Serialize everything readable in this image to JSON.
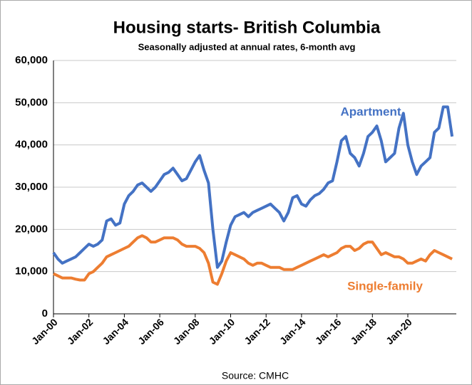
{
  "chart_data": {
    "type": "line",
    "title": "Housing starts- British Columbia",
    "subtitle": "Seasonally adjusted at annual rates, 6-month avg",
    "source": "Source: CMHC",
    "categories": [
      "Jan-00",
      null,
      null,
      null,
      null,
      null,
      null,
      null,
      "Jan-02",
      null,
      null,
      null,
      null,
      null,
      null,
      null,
      "Jan-04",
      null,
      null,
      null,
      null,
      null,
      null,
      null,
      "Jan-06",
      null,
      null,
      null,
      null,
      null,
      null,
      null,
      "Jan-08",
      null,
      null,
      null,
      null,
      null,
      null,
      null,
      "Jan-10",
      null,
      null,
      null,
      null,
      null,
      null,
      null,
      "Jan-12",
      null,
      null,
      null,
      null,
      null,
      null,
      null,
      "Jan-14",
      null,
      null,
      null,
      null,
      null,
      null,
      null,
      "Jan-16",
      null,
      null,
      null,
      null,
      null,
      null,
      null,
      "Jan-18",
      null,
      null,
      null,
      null,
      null,
      null,
      null,
      "Jan-20",
      null,
      null,
      null,
      null,
      null,
      null,
      null,
      null,
      null,
      null
    ],
    "series": [
      {
        "name": "Apartment",
        "color": "#4472c4",
        "values": [
          14500,
          13000,
          12000,
          12500,
          13000,
          13500,
          14500,
          15500,
          16500,
          16000,
          16500,
          17500,
          22000,
          22500,
          21000,
          21500,
          26000,
          28000,
          29000,
          30500,
          31000,
          30000,
          29000,
          30000,
          31500,
          33000,
          33500,
          34500,
          33000,
          31500,
          32000,
          34000,
          36000,
          37500,
          34000,
          31000,
          20000,
          11000,
          12500,
          17000,
          21000,
          23000,
          23500,
          24000,
          23000,
          24000,
          24500,
          25000,
          25500,
          26000,
          25000,
          24000,
          22000,
          24000,
          27500,
          28000,
          26000,
          25500,
          27000,
          28000,
          28500,
          29500,
          31000,
          31500,
          36000,
          41000,
          42000,
          38000,
          37000,
          35000,
          38000,
          42000,
          43000,
          44500,
          41000,
          36000,
          37000,
          38000,
          44000,
          47500,
          40000,
          36000,
          33000,
          35000,
          36000,
          37000,
          43000,
          44000,
          49000,
          49000,
          42000
        ]
      },
      {
        "name": "Single-family",
        "color": "#ed7d31",
        "values": [
          9500,
          9000,
          8500,
          8500,
          8500,
          8200,
          8000,
          8000,
          9500,
          10000,
          11000,
          12000,
          13500,
          14000,
          14500,
          15000,
          15500,
          16000,
          17000,
          18000,
          18500,
          18000,
          17000,
          17000,
          17500,
          18000,
          18000,
          18000,
          17500,
          16500,
          16000,
          16000,
          16000,
          15500,
          14500,
          12000,
          7500,
          7000,
          9500,
          12500,
          14500,
          14000,
          13500,
          13000,
          12000,
          11500,
          12000,
          12000,
          11500,
          11000,
          11000,
          11000,
          10500,
          10500,
          10500,
          11000,
          11500,
          12000,
          12500,
          13000,
          13500,
          14000,
          13500,
          14000,
          14500,
          15500,
          16000,
          16000,
          15000,
          15500,
          16500,
          17000,
          17000,
          15500,
          14000,
          14500,
          14000,
          13500,
          13500,
          13000,
          12000,
          12000,
          12500,
          13000,
          12500,
          14000,
          15000,
          14500,
          14000,
          13500,
          13000
        ]
      }
    ],
    "ylim": [
      0,
      60000
    ],
    "yticks": [
      0,
      {
        "value": 10000,
        "label": "10,000"
      },
      {
        "value": 20000,
        "label": "20,000"
      },
      {
        "value": 30000,
        "label": "30,000"
      },
      {
        "value": 40000,
        "label": "40,000"
      },
      {
        "value": 50000,
        "label": "50,000"
      },
      {
        "value": 60000,
        "label": "60,000"
      }
    ],
    "grid": true
  }
}
